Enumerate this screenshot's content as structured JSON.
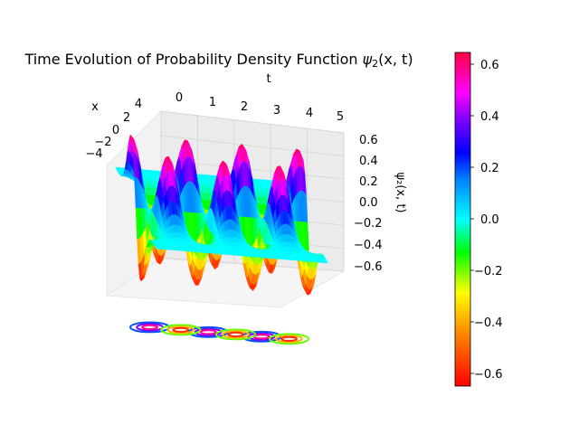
{
  "chart_data": {
    "type": "surface",
    "title_prefix": "Time Evolution of Probability Density Function ",
    "title_symbol": "ψ",
    "title_subscript": "2",
    "title_suffix": "(x, t)",
    "xlabel": "t",
    "ylabel": "x",
    "zlabel": "ψ₂(x, t)",
    "t_ticks": [
      "0",
      "1",
      "2",
      "3",
      "4",
      "5"
    ],
    "x_ticks": [
      "4",
      "2",
      "0",
      "−2",
      "−4"
    ],
    "z_ticks": [
      "0.6",
      "0.4",
      "0.2",
      "0.0",
      "−0.2",
      "−0.4",
      "−0.6"
    ],
    "xlim": [
      0,
      5
    ],
    "ylim": [
      -5,
      5
    ],
    "zlim": [
      -0.64,
      0.64
    ],
    "colormap": "gist_rainbow",
    "colorbar": {
      "ticks": [
        "0.6",
        "0.4",
        "0.2",
        "0.0",
        "−0.2",
        "−0.4",
        "−0.6"
      ],
      "range": [
        -0.64,
        0.64
      ]
    },
    "surface": {
      "amplitude": 0.64,
      "t_peaks": [
        0.05,
        1.75,
        3.3
      ],
      "t_troughs": [
        0.95,
        2.55,
        4.1
      ],
      "description_function": "psi2(x,t) = A * x * exp(-x^2/2) * cos(omega t)"
    },
    "contour_projection": "z = -0.64"
  }
}
